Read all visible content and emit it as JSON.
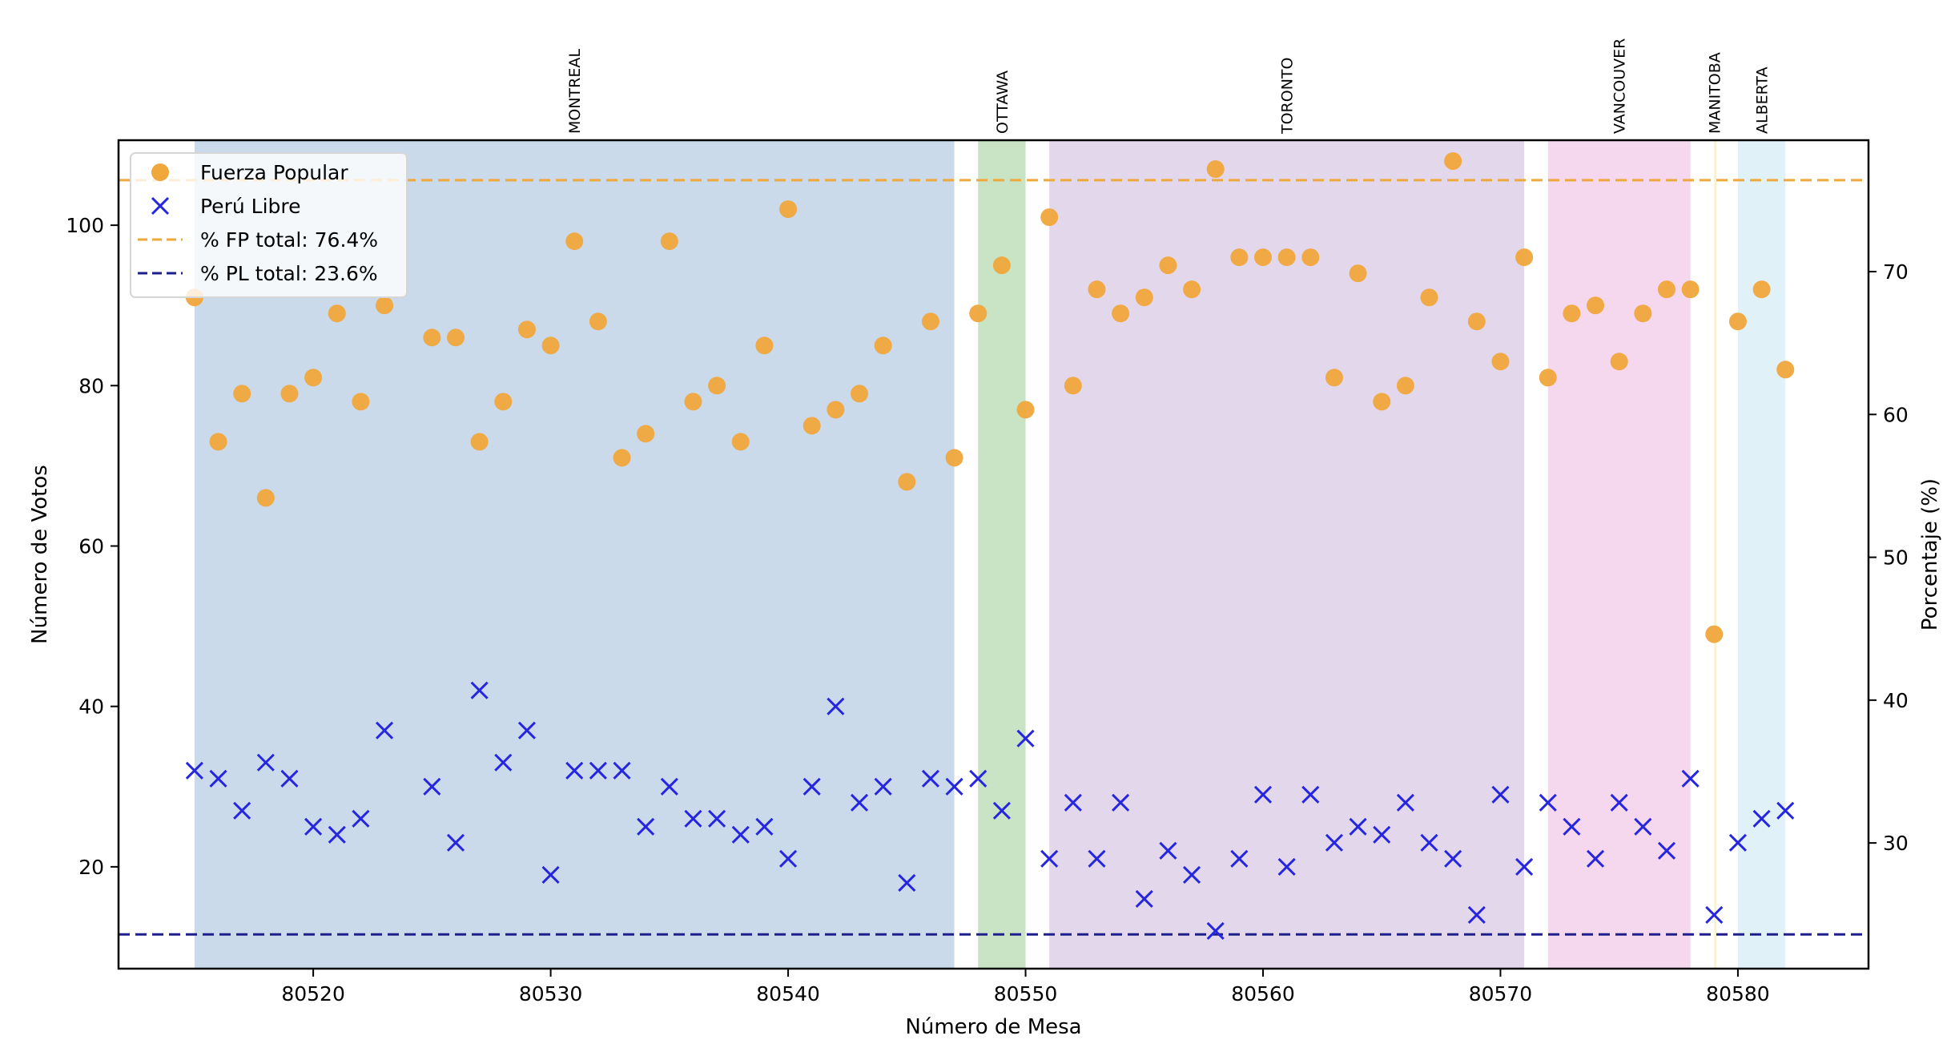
{
  "chart_data": {
    "type": "scatter",
    "xlabel": "Número de Mesa",
    "ylabel": "Número de Votos",
    "y2label": "Porcentaje (%)",
    "xlim": [
      80511.8,
      80585.5
    ],
    "ylim": [
      7.3,
      110.6
    ],
    "y2lim": [
      21.2,
      79.2
    ],
    "xticks": [
      80520,
      80530,
      80540,
      80550,
      80560,
      80570,
      80580
    ],
    "yticks": [
      20,
      40,
      60,
      80,
      100
    ],
    "y2ticks": [
      30,
      40,
      50,
      60,
      70
    ],
    "grid": false,
    "legend_position": "upper-left",
    "regions": [
      {
        "name": "MONTREAL",
        "x0": 80515,
        "x1": 80547,
        "color": "#a9c4de"
      },
      {
        "name": "OTTAWA",
        "x0": 80548,
        "x1": 80550,
        "color": "#a6d4a0"
      },
      {
        "name": "TORONTO",
        "x0": 80551,
        "x1": 80571,
        "color": "#d2c0df"
      },
      {
        "name": "VANCOUVER",
        "x0": 80572,
        "x1": 80578,
        "color": "#efc0e2"
      },
      {
        "name": "MANITOBA",
        "x0": 80579,
        "x1": 80579,
        "color": "#f1ecb0"
      },
      {
        "name": "ALBERTA",
        "x0": 80580,
        "x1": 80582,
        "color": "#cfe9f3"
      }
    ],
    "series": [
      {
        "name": "Fuerza Popular",
        "marker": "circle",
        "color": "#f0a73c",
        "x": [
          80515,
          80516,
          80517,
          80518,
          80519,
          80520,
          80521,
          80522,
          80523,
          80525,
          80526,
          80527,
          80528,
          80529,
          80530,
          80531,
          80532,
          80533,
          80534,
          80535,
          80536,
          80537,
          80538,
          80539,
          80540,
          80541,
          80542,
          80543,
          80544,
          80545,
          80546,
          80547,
          80548,
          80549,
          80550,
          80551,
          80552,
          80553,
          80554,
          80555,
          80556,
          80557,
          80558,
          80559,
          80560,
          80561,
          80562,
          80563,
          80564,
          80565,
          80566,
          80567,
          80568,
          80569,
          80570,
          80571,
          80572,
          80573,
          80574,
          80575,
          80576,
          80577,
          80578,
          80579,
          80580,
          80581,
          80582
        ],
        "values": [
          91,
          73,
          79,
          66,
          79,
          81,
          89,
          78,
          90,
          86,
          86,
          73,
          78,
          87,
          85,
          98,
          88,
          71,
          74,
          98,
          78,
          80,
          73,
          85,
          102,
          75,
          77,
          79,
          85,
          68,
          88,
          71,
          89,
          95,
          77,
          101,
          80,
          92,
          89,
          91,
          95,
          92,
          107,
          96,
          96,
          96,
          96,
          81,
          94,
          78,
          80,
          91,
          108,
          88,
          83,
          96,
          81,
          89,
          90,
          83,
          89,
          92,
          92,
          49,
          88,
          92,
          82
        ]
      },
      {
        "name": "Perú Libre",
        "marker": "x",
        "color": "#2626e0",
        "x": [
          80515,
          80516,
          80517,
          80518,
          80519,
          80520,
          80521,
          80522,
          80523,
          80525,
          80526,
          80527,
          80528,
          80529,
          80530,
          80531,
          80532,
          80533,
          80534,
          80535,
          80536,
          80537,
          80538,
          80539,
          80540,
          80541,
          80542,
          80543,
          80544,
          80545,
          80546,
          80547,
          80548,
          80549,
          80550,
          80551,
          80552,
          80553,
          80554,
          80555,
          80556,
          80557,
          80558,
          80559,
          80560,
          80561,
          80562,
          80563,
          80564,
          80565,
          80566,
          80567,
          80568,
          80569,
          80570,
          80571,
          80572,
          80573,
          80574,
          80575,
          80576,
          80577,
          80578,
          80579,
          80580,
          80581,
          80582
        ],
        "values": [
          32,
          31,
          27,
          33,
          31,
          25,
          24,
          26,
          37,
          30,
          23,
          42,
          33,
          37,
          19,
          32,
          32,
          32,
          25,
          30,
          26,
          26,
          24,
          25,
          21,
          30,
          40,
          28,
          30,
          18,
          31,
          30,
          31,
          27,
          36,
          21,
          28,
          21,
          28,
          16,
          22,
          19,
          12,
          21,
          29,
          20,
          29,
          23,
          25,
          24,
          28,
          23,
          21,
          14,
          29,
          20,
          28,
          25,
          21,
          28,
          25,
          22,
          31,
          14,
          23,
          26,
          27
        ]
      }
    ],
    "reference_lines": [
      {
        "name": "% FP total: 76.4%",
        "axis": "y2",
        "value": 76.4,
        "color": "#f0a73c",
        "style": "dashed"
      },
      {
        "name": "% PL total: 23.6%",
        "axis": "y2",
        "value": 23.6,
        "color": "#1e1e8c",
        "style": "dashed"
      }
    ]
  }
}
